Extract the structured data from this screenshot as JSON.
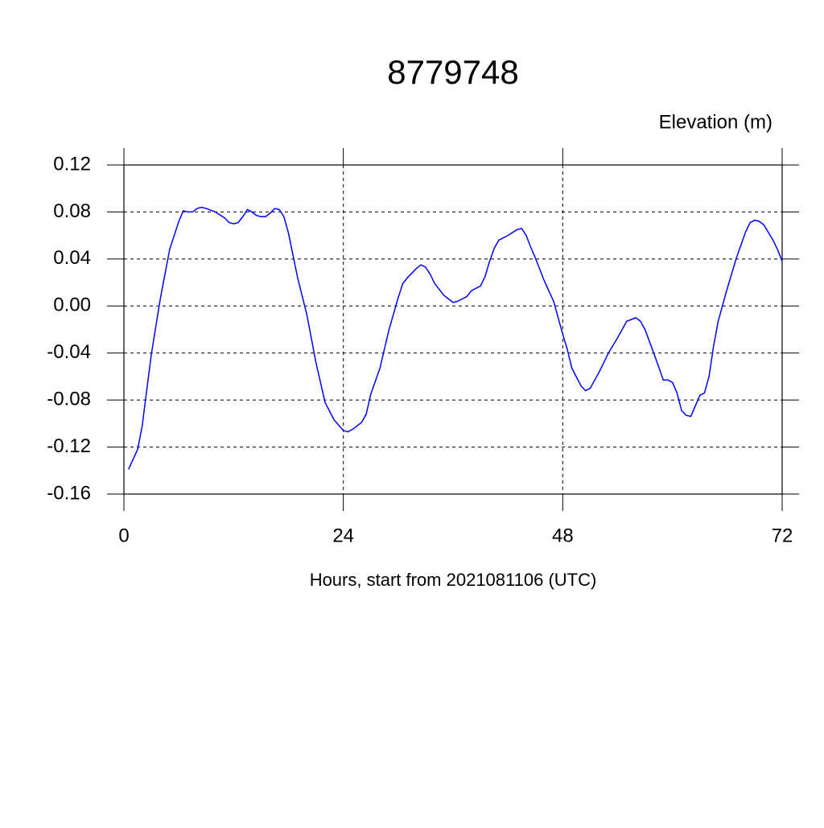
{
  "chart_data": {
    "type": "line",
    "title": "8779748",
    "subtitle": "Elevation (m)",
    "xlabel": "Hours, start from 2021081106 (UTC)",
    "x": [
      0.5,
      1.5,
      2,
      3,
      4,
      5,
      6,
      6.5,
      7,
      7.5,
      8,
      8.5,
      9,
      10,
      11,
      11.5,
      12,
      12.5,
      13,
      13.5,
      14,
      14.5,
      15,
      15.5,
      16,
      16.5,
      17,
      17.5,
      18,
      19,
      20,
      21,
      22,
      23,
      24,
      24.5,
      25,
      26,
      26.5,
      27,
      28,
      29,
      30,
      30.5,
      31,
      32,
      32.5,
      33,
      33.5,
      34,
      35,
      36,
      36.5,
      37,
      37.5,
      38,
      39,
      39.5,
      40,
      40.5,
      41,
      42,
      43,
      43.5,
      44,
      44.5,
      45,
      46,
      47,
      48,
      48.5,
      49,
      50,
      50.5,
      51,
      52,
      53,
      54,
      55,
      56,
      56.5,
      57,
      58,
      59,
      59.5,
      60,
      60.5,
      61,
      61.5,
      62,
      63,
      63.5,
      64,
      64.5,
      65,
      66,
      67,
      68,
      68.5,
      69,
      69.5,
      70,
      71,
      71.5,
      72
    ],
    "series": [
      {
        "name": "Elevation",
        "color": "#0000ff",
        "values": [
          -0.139,
          -0.122,
          -0.102,
          -0.041,
          0.007,
          0.048,
          0.072,
          0.081,
          0.08,
          0.08,
          0.083,
          0.084,
          0.083,
          0.08,
          0.075,
          0.071,
          0.07,
          0.071,
          0.076,
          0.082,
          0.08,
          0.077,
          0.076,
          0.076,
          0.079,
          0.083,
          0.082,
          0.076,
          0.062,
          0.024,
          -0.007,
          -0.048,
          -0.082,
          -0.097,
          -0.106,
          -0.107,
          -0.105,
          -0.099,
          -0.092,
          -0.075,
          -0.053,
          -0.02,
          0.007,
          0.019,
          0.024,
          0.032,
          0.035,
          0.033,
          0.027,
          0.019,
          0.009,
          0.003,
          0.004,
          0.006,
          0.008,
          0.013,
          0.017,
          0.025,
          0.038,
          0.049,
          0.056,
          0.06,
          0.065,
          0.066,
          0.06,
          0.05,
          0.041,
          0.021,
          0.004,
          -0.024,
          -0.037,
          -0.053,
          -0.068,
          -0.072,
          -0.07,
          -0.056,
          -0.04,
          -0.027,
          -0.013,
          -0.01,
          -0.013,
          -0.02,
          -0.041,
          -0.063,
          -0.063,
          -0.065,
          -0.074,
          -0.089,
          -0.093,
          -0.094,
          -0.076,
          -0.074,
          -0.06,
          -0.034,
          -0.013,
          0.015,
          0.041,
          0.063,
          0.071,
          0.073,
          0.072,
          0.069,
          0.056,
          0.048,
          0.038
        ]
      }
    ],
    "xlim": [
      0,
      72
    ],
    "xticks": [
      0,
      24,
      48,
      72
    ],
    "ylim": [
      -0.16,
      0.12
    ],
    "yticks": [
      -0.16,
      -0.12,
      -0.08,
      -0.04,
      {
        "value": 0,
        "label": "0.00"
      },
      0.04,
      0.08,
      0.12
    ],
    "grid": true
  }
}
